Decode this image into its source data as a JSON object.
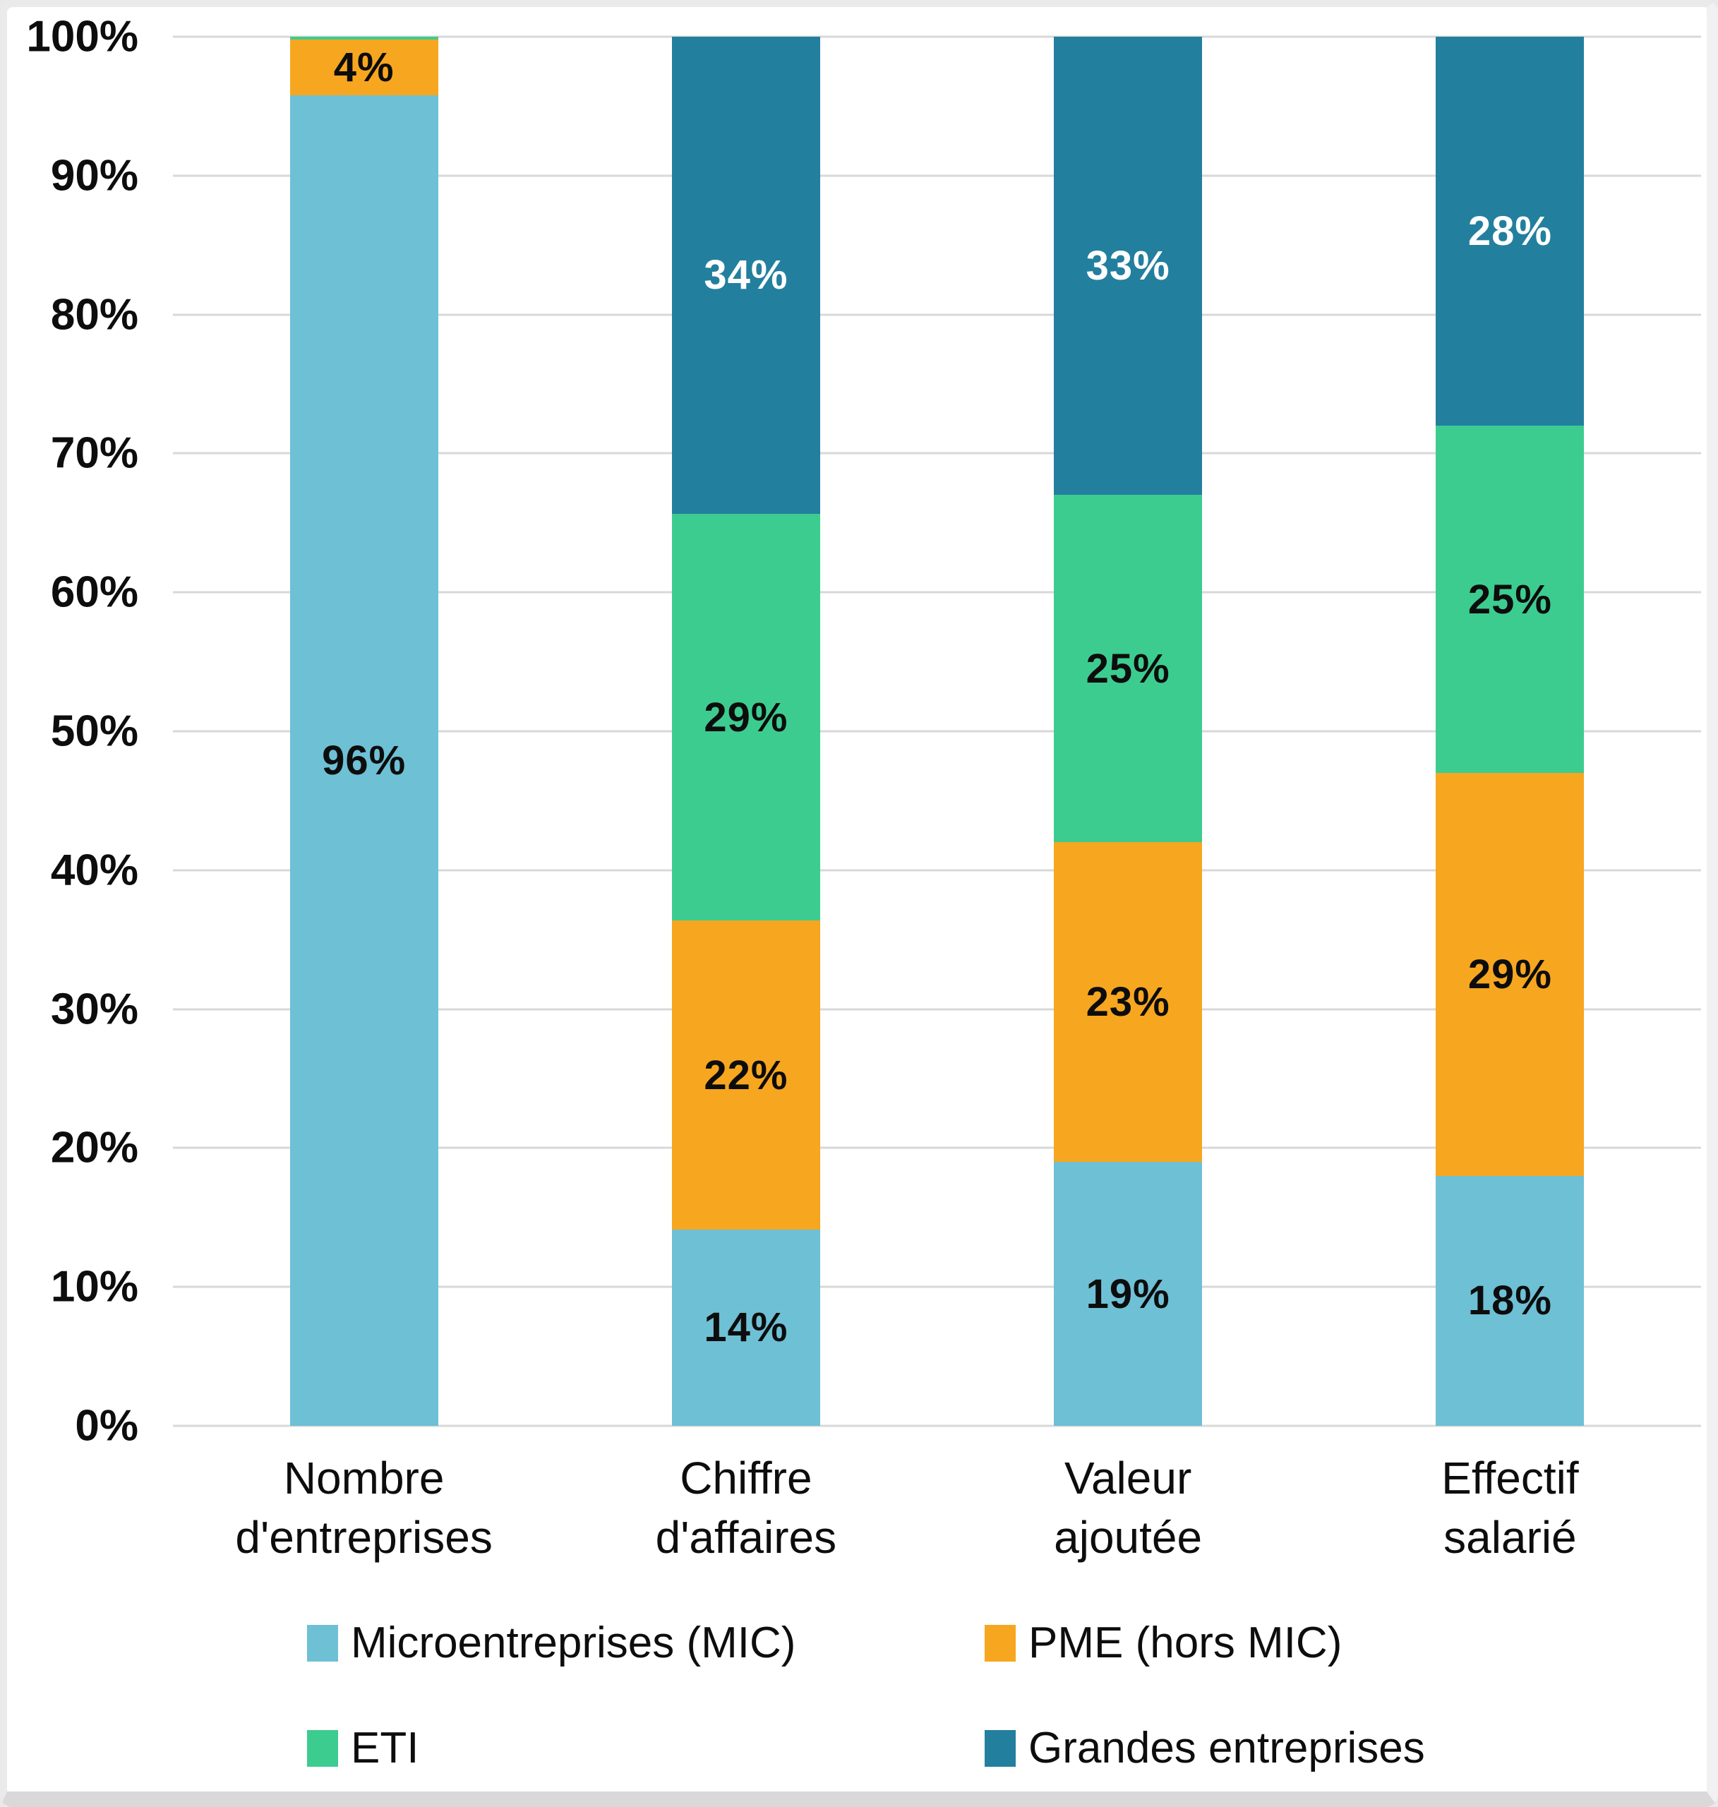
{
  "chart_data": {
    "type": "bar",
    "variant": "stacked-100-percent",
    "title": "",
    "xlabel": "",
    "ylabel": "",
    "grid": true,
    "legend_position": "bottom",
    "categories": [
      "Nombre\nd'entreprises",
      "Chiffre\nd'affaires",
      "Valeur\najoutée",
      "Effectif\nsalarié"
    ],
    "series": [
      {
        "name": "Microentreprises (MIC)",
        "color": "#6EC0D5",
        "label_color": "#0D0D0D",
        "values": [
          96,
          14,
          19,
          18
        ],
        "labels": [
          "96%",
          "14%",
          "19%",
          "18%"
        ]
      },
      {
        "name": "PME (hors MIC)",
        "color": "#F7A620",
        "label_color": "#0D0D0D",
        "values": [
          4,
          22,
          23,
          29
        ],
        "labels": [
          "4%",
          "22%",
          "23%",
          "29%"
        ]
      },
      {
        "name": "ETI",
        "color": "#3DCC90",
        "label_color": "#0D0D0D",
        "values": [
          0.2,
          29,
          25,
          25
        ],
        "labels": [
          "",
          "29%",
          "25%",
          "25%"
        ]
      },
      {
        "name": "Grandes entreprises",
        "color": "#237F9E",
        "label_color": "#FFFFFF",
        "values": [
          0,
          34,
          33,
          28
        ],
        "labels": [
          "",
          "34%",
          "33%",
          "28%"
        ]
      }
    ],
    "y_axis": {
      "min": 0,
      "max": 100,
      "tick_step": 10,
      "tick_labels": [
        "0%",
        "10%",
        "20%",
        "30%",
        "40%",
        "50%",
        "60%",
        "70%",
        "80%",
        "90%",
        "100%"
      ]
    }
  }
}
